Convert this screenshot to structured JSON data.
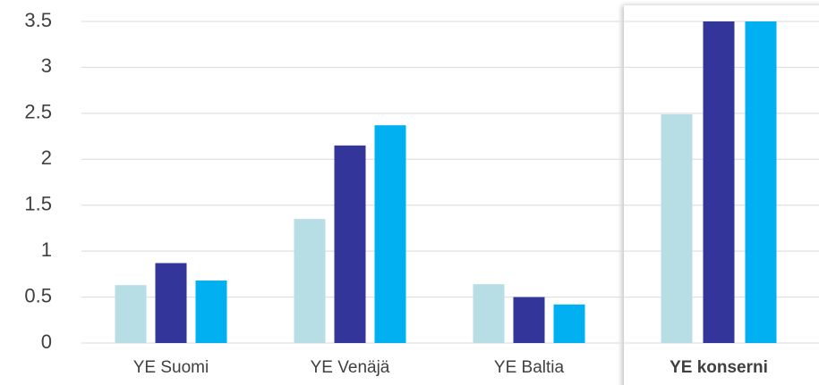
{
  "chart_data": {
    "type": "bar",
    "categories": [
      "YE Suomi",
      "YE Venäjä",
      "YE Baltia",
      "YE konserni"
    ],
    "series": [
      {
        "color": "#b7dee4",
        "values": [
          0.63,
          1.35,
          0.64,
          2.49
        ]
      },
      {
        "color": "#34359a",
        "values": [
          0.87,
          2.15,
          0.5,
          3.5
        ]
      },
      {
        "color": "#00b0f0",
        "values": [
          0.68,
          2.37,
          0.42,
          3.5
        ]
      }
    ],
    "ylim": [
      0,
      3.5
    ],
    "yticks": [
      0,
      0.5,
      1,
      1.5,
      2,
      2.5,
      3,
      3.5
    ],
    "grid": true
  }
}
